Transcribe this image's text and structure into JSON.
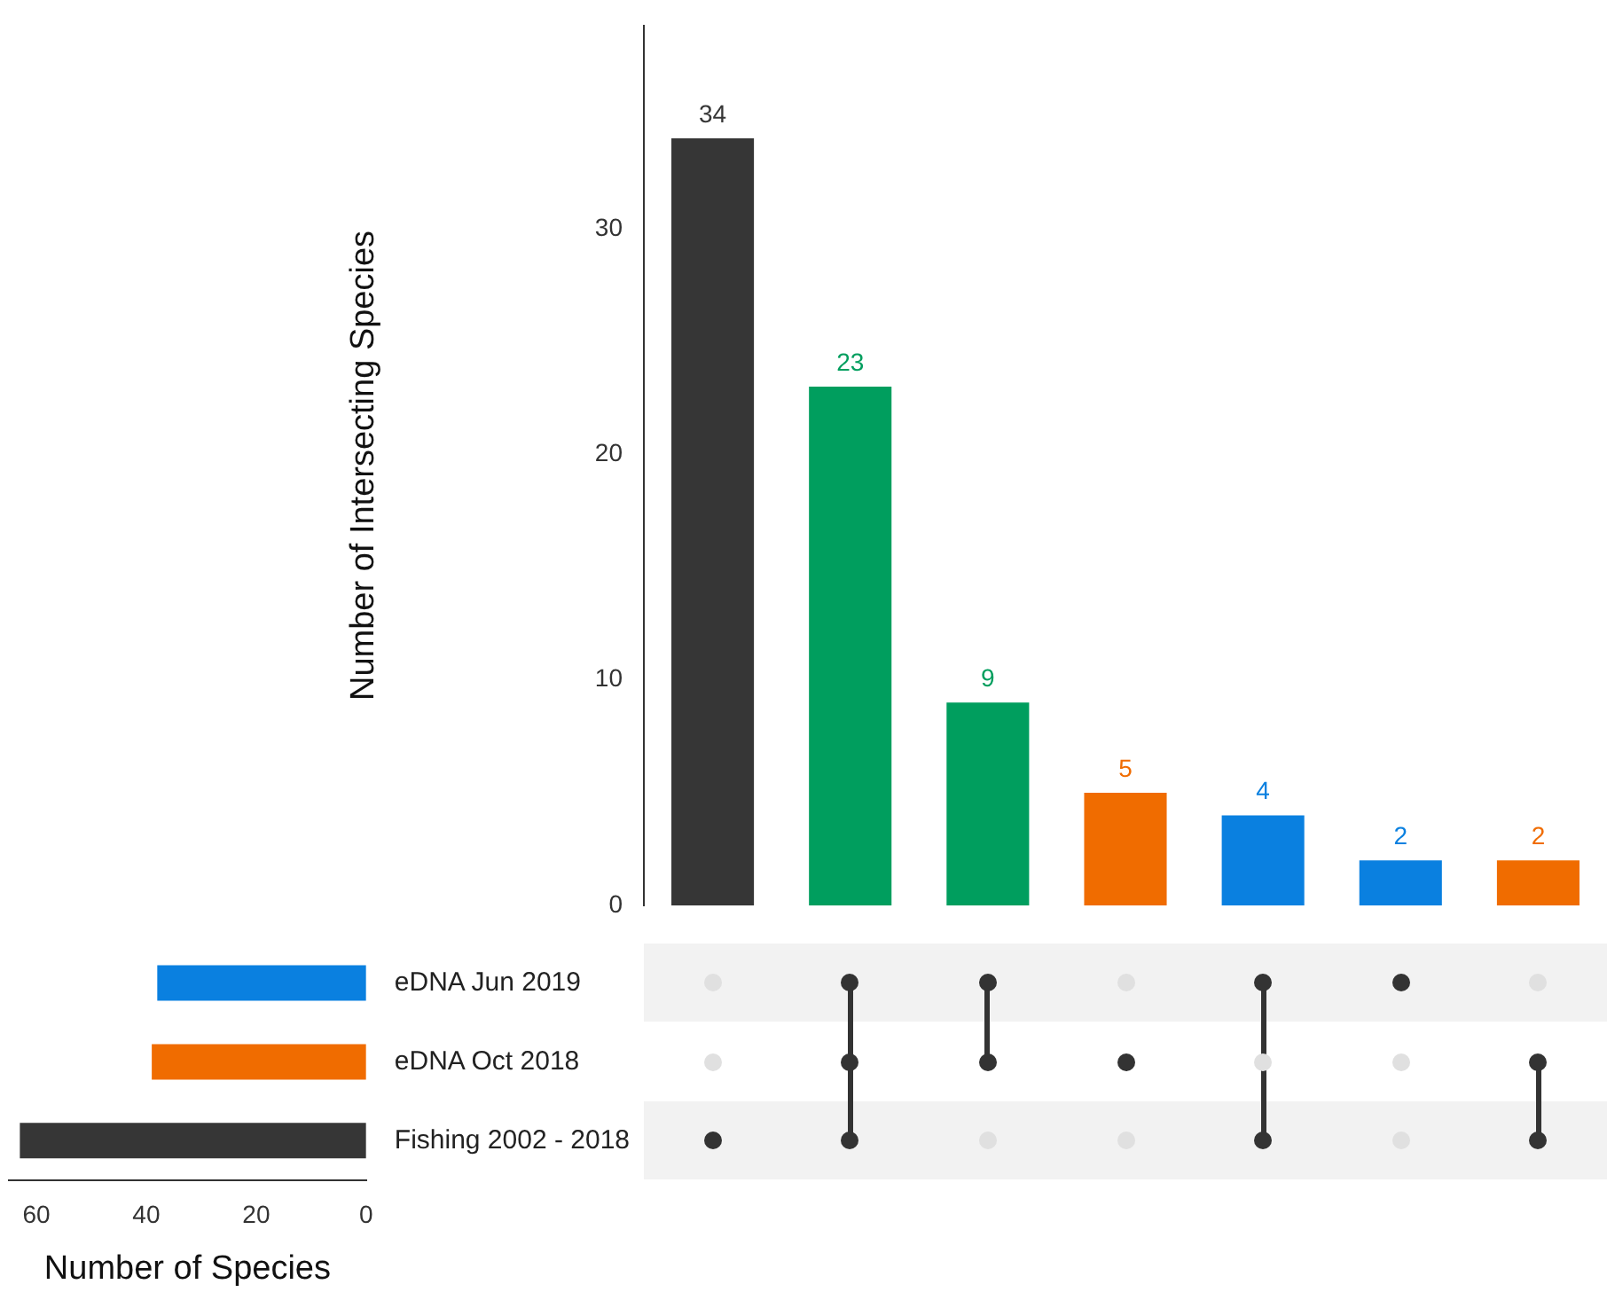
{
  "chart_data": [
    {
      "type": "bar",
      "ylabel": "Number of Intersecting Species",
      "categories": [
        null,
        null,
        null,
        null,
        null,
        null,
        null
      ],
      "values": [
        34,
        23,
        9,
        5,
        4,
        2,
        2
      ],
      "colors": [
        "#363636",
        "#009e5e",
        "#009e5e",
        "#f06c00",
        "#0a80e0",
        "#0a80e0",
        "#f06c00"
      ],
      "ylim": [
        0,
        39
      ],
      "yticks": [
        0,
        10,
        20,
        30
      ],
      "data_labels": true,
      "grid": false,
      "legend": false
    },
    {
      "type": "bar",
      "orientation": "horizontal",
      "xlabel": "Number of Species",
      "categories": [
        "eDNA Jun 2019",
        "eDNA Oct 2018",
        "Fishing 2002 - 2018"
      ],
      "values": [
        38,
        39,
        63
      ],
      "colors": [
        "#0a80e0",
        "#f06c00",
        "#363636"
      ],
      "xlim": [
        65,
        0
      ],
      "xticks": [
        60,
        40,
        20,
        0
      ],
      "grid": false,
      "legend": false
    }
  ]
}
